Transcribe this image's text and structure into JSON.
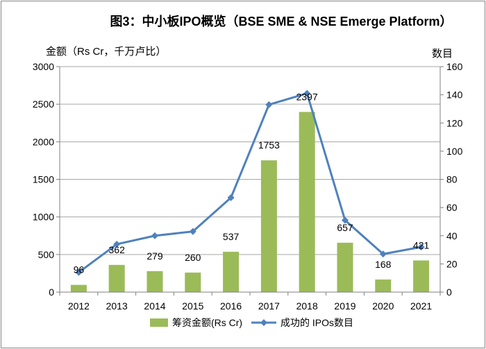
{
  "chart_data": {
    "type": "bar",
    "title": "图3：中小板IPO概览（BSE SME & NSE Emerge Platform）",
    "y_left_label": "金额（Rs Cr，千万卢比）",
    "y_right_label": "数目",
    "categories": [
      "2012",
      "2013",
      "2014",
      "2015",
      "2016",
      "2017",
      "2018",
      "2019",
      "2020",
      "2021"
    ],
    "series": [
      {
        "name": "筹资金额(Rs Cr)",
        "type": "bar",
        "axis": "left",
        "color": "#9BBB59",
        "values": [
          96,
          362,
          279,
          260,
          537,
          1753,
          2397,
          657,
          168,
          421
        ],
        "labels": [
          "96",
          "362",
          "279",
          "260",
          "537",
          "1753",
          "2397",
          "657",
          "168",
          "421"
        ]
      },
      {
        "name": "成功的 IPOs数目",
        "type": "line",
        "axis": "right",
        "color": "#4F81BD",
        "values": [
          14,
          34,
          40,
          43,
          67,
          133,
          141,
          51,
          27,
          32
        ]
      }
    ],
    "y_left_ticks": [
      "0",
      "500",
      "1000",
      "1500",
      "2000",
      "2500",
      "3000"
    ],
    "y_right_ticks": [
      "0",
      "20",
      "40",
      "60",
      "80",
      "100",
      "120",
      "140",
      "160"
    ],
    "y_left_range": [
      0,
      3000
    ],
    "y_right_range": [
      0,
      160
    ],
    "grid": true,
    "legend_position": "bottom"
  }
}
